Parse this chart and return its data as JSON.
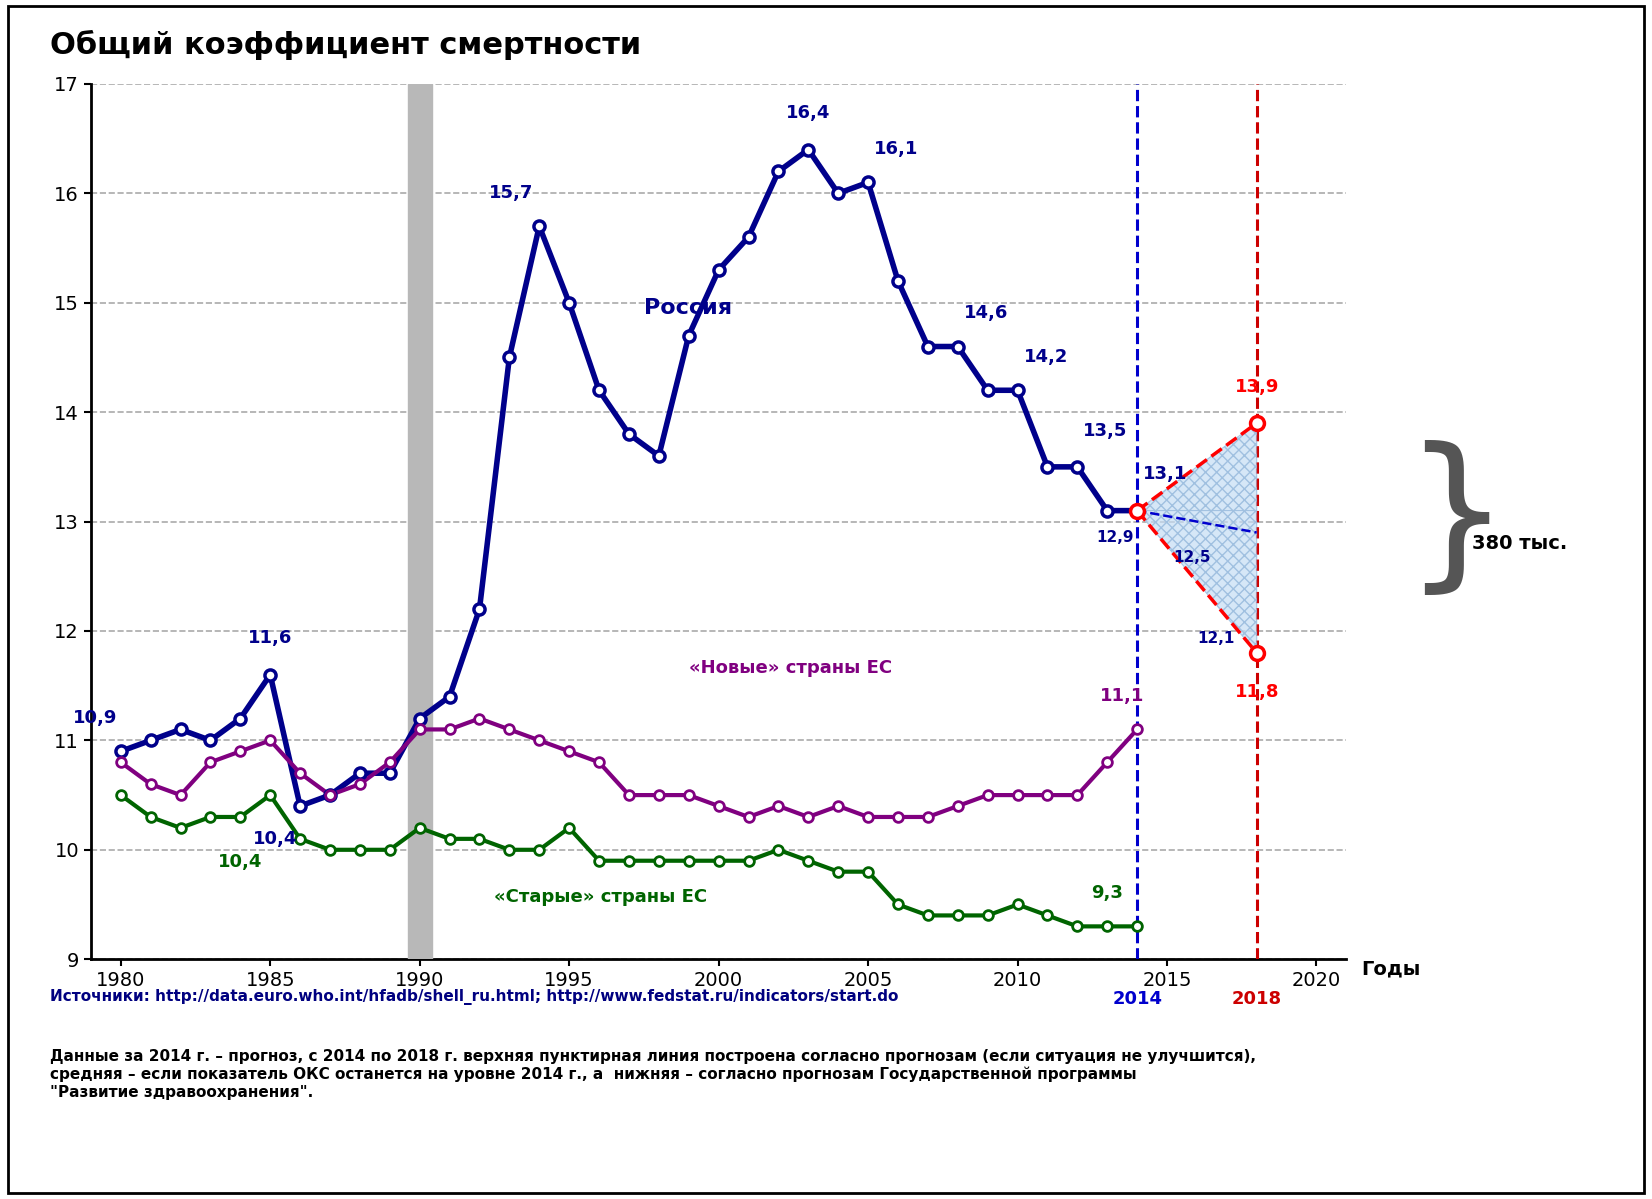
{
  "title": "Общий коэффициент смертности",
  "xlabel_right": "Годы",
  "ylim": [
    9,
    17
  ],
  "xlim": [
    1979,
    2021
  ],
  "yticks": [
    9,
    10,
    11,
    12,
    13,
    14,
    15,
    16,
    17
  ],
  "xticks": [
    1980,
    1985,
    1990,
    1995,
    2000,
    2005,
    2010,
    2015,
    2020
  ],
  "russia_x": [
    1980,
    1981,
    1982,
    1983,
    1984,
    1985,
    1986,
    1987,
    1988,
    1989,
    1990,
    1991,
    1992,
    1993,
    1994,
    1995,
    1996,
    1997,
    1998,
    1999,
    2000,
    2001,
    2002,
    2003,
    2004,
    2005,
    2006,
    2007,
    2008,
    2009,
    2010,
    2011,
    2012,
    2013,
    2014
  ],
  "russia_y": [
    10.9,
    11.0,
    11.1,
    11.0,
    11.2,
    11.6,
    10.4,
    10.5,
    10.7,
    10.7,
    11.2,
    11.4,
    12.2,
    14.5,
    15.7,
    15.0,
    14.2,
    13.8,
    13.6,
    14.7,
    15.3,
    15.6,
    16.2,
    16.4,
    16.0,
    16.1,
    15.2,
    14.6,
    14.6,
    14.2,
    14.2,
    13.5,
    13.5,
    13.1,
    13.1
  ],
  "russia_color": "#00008B",
  "new_eu_x": [
    1980,
    1981,
    1982,
    1983,
    1984,
    1985,
    1986,
    1987,
    1988,
    1989,
    1990,
    1991,
    1992,
    1993,
    1994,
    1995,
    1996,
    1997,
    1998,
    1999,
    2000,
    2001,
    2002,
    2003,
    2004,
    2005,
    2006,
    2007,
    2008,
    2009,
    2010,
    2011,
    2012,
    2013,
    2014
  ],
  "new_eu_y": [
    10.8,
    10.6,
    10.5,
    10.8,
    10.9,
    11.0,
    10.7,
    10.5,
    10.6,
    10.8,
    11.1,
    11.1,
    11.2,
    11.1,
    11.0,
    10.9,
    10.8,
    10.5,
    10.5,
    10.5,
    10.4,
    10.3,
    10.4,
    10.3,
    10.4,
    10.3,
    10.3,
    10.3,
    10.4,
    10.5,
    10.5,
    10.5,
    10.5,
    10.8,
    11.1
  ],
  "new_eu_color": "#800080",
  "old_eu_x": [
    1980,
    1981,
    1982,
    1983,
    1984,
    1985,
    1986,
    1987,
    1988,
    1989,
    1990,
    1991,
    1992,
    1993,
    1994,
    1995,
    1996,
    1997,
    1998,
    1999,
    2000,
    2001,
    2002,
    2003,
    2004,
    2005,
    2006,
    2007,
    2008,
    2009,
    2010,
    2011,
    2012,
    2013,
    2014
  ],
  "old_eu_y": [
    10.5,
    10.3,
    10.2,
    10.3,
    10.3,
    10.5,
    10.1,
    10.0,
    10.0,
    10.0,
    10.2,
    10.1,
    10.1,
    10.0,
    10.0,
    10.2,
    9.9,
    9.9,
    9.9,
    9.9,
    9.9,
    9.9,
    10.0,
    9.9,
    9.8,
    9.8,
    9.5,
    9.4,
    9.4,
    9.4,
    9.5,
    9.4,
    9.3,
    9.3,
    9.3
  ],
  "old_eu_color": "#006400",
  "vertical_bar_color": "#b8b8b8",
  "vline_2014_color": "#0000CD",
  "vline_2018_color": "#CC0000",
  "source_text": "Источники: http://data.euro.who.int/hfadb/shell_ru.html; http://www.fedstat.ru/indicators/start.do",
  "footnote_text": "Данные за 2014 г. – прогноз, с 2014 по 2018 г. верхняя пунктирная линия построена согласно прогнозам (если ситуация не улучшится),\nсредняя – если показатель ОКС останется на уровне 2014 г., а  нижняя – согласно прогнозам Государственной программы\n\"Развитие здравоохранения\".",
  "background_color": "#ffffff"
}
